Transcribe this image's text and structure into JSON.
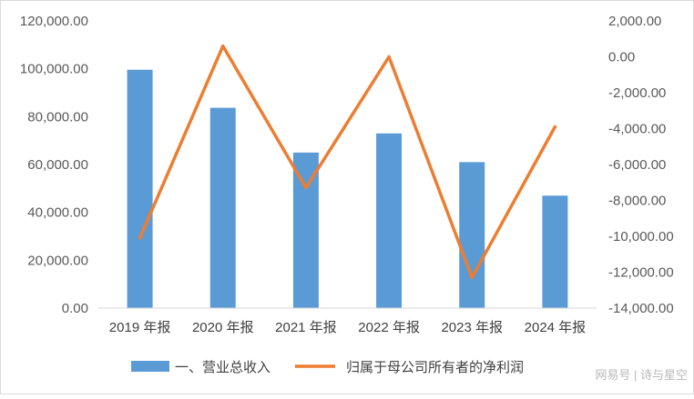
{
  "chart_data": {
    "type": "bar",
    "categories": [
      "2019 年报",
      "2020 年报",
      "2021 年报",
      "2022 年报",
      "2023 年报",
      "2024 年报"
    ],
    "series": [
      {
        "name": "一、营业总收入",
        "type": "bar",
        "axis": "left",
        "color": "#5B9BD5",
        "values": [
          99600,
          83700,
          65000,
          73000,
          61000,
          47000
        ]
      },
      {
        "name": "归属于母公司所有者的净利润",
        "type": "line",
        "axis": "right",
        "color": "#ED7D31",
        "values": [
          -10100,
          600,
          -7300,
          0,
          -12300,
          -3900
        ]
      }
    ],
    "y_left": {
      "ylim": [
        0,
        120000
      ],
      "ticks": [
        0,
        20000,
        40000,
        60000,
        80000,
        100000,
        120000
      ],
      "tick_labels": [
        "0.00",
        "20,000.00",
        "40,000.00",
        "60,000.00",
        "80,000.00",
        "100,000.00",
        "120,000.00"
      ]
    },
    "y_right": {
      "ylim": [
        -14000,
        2000
      ],
      "ticks": [
        -14000,
        -12000,
        -10000,
        -8000,
        -6000,
        -4000,
        -2000,
        0,
        2000
      ],
      "tick_labels": [
        "-14,000.00",
        "-12,000.00",
        "-10,000.00",
        "-8,000.00",
        "-6,000.00",
        "-4,000.00",
        "-2,000.00",
        "0.00",
        "2,000.00"
      ]
    },
    "grid": false,
    "legend_position": "bottom"
  },
  "watermark": "网易号 | 诗与星空"
}
